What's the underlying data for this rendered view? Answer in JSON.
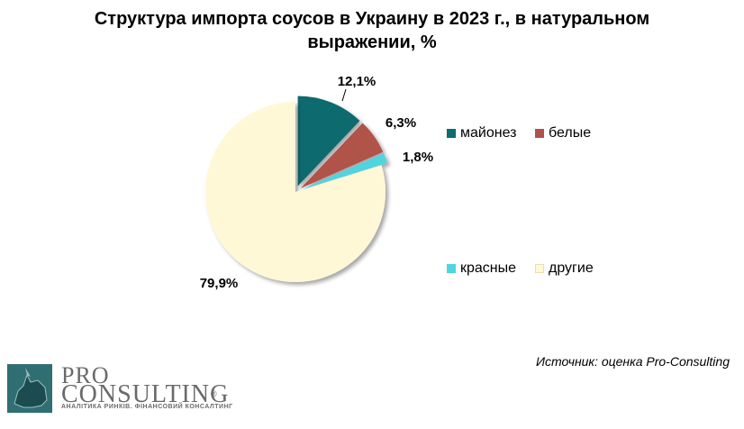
{
  "chart_data": {
    "type": "pie",
    "title": "Структура импорта соусов в Украину в 2023 г., в натуральном выражении, %",
    "slices": [
      {
        "name": "майонез",
        "value": 12.1,
        "label": "12,1%",
        "color": "#0e6b6e",
        "exploded": true
      },
      {
        "name": "белые",
        "value": 6.3,
        "label": "6,3%",
        "color": "#b0524a",
        "exploded": true
      },
      {
        "name": "красные",
        "value": 1.8,
        "label": "1,8%",
        "color": "#4fd5e0",
        "exploded": true
      },
      {
        "name": "другие",
        "value": 79.9,
        "label": "79,9%",
        "color": "#fff8d6",
        "exploded": false
      }
    ],
    "legend_position": "right"
  },
  "source": "Источник: оценка Pro-Consulting",
  "logo": {
    "pro": "PRO",
    "consulting": "CONSULTING",
    "registered": "®",
    "tagline": "АНАЛІТИКА РИНКІВ. ФІНАНСОВИЙ КОНСАЛТИНГ"
  }
}
